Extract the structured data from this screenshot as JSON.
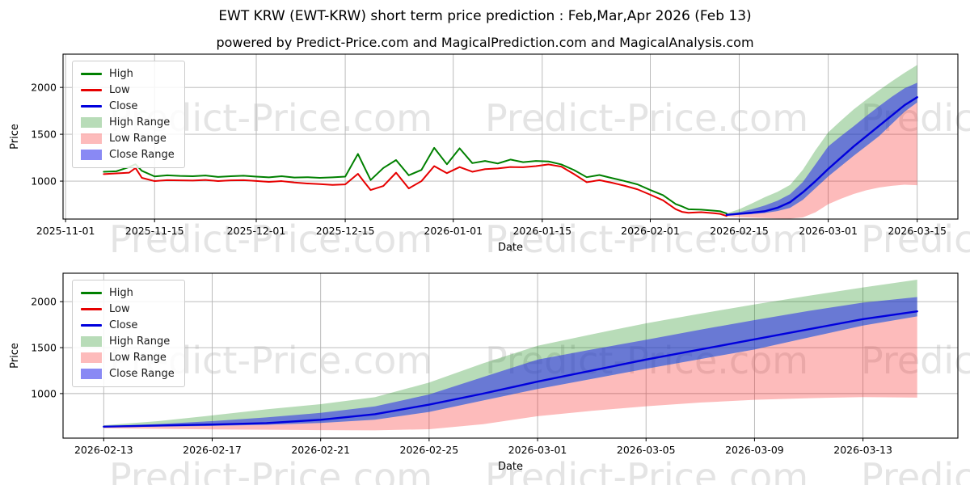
{
  "page": {
    "title": "EWT KRW (EWT-KRW) short term price prediction : Feb,Mar,Apr 2026 (Feb 13)",
    "subtitle": "powered by Predict-Price.com and MagicalPrediction.com and MagicalAnalysis.com",
    "watermark": {
      "text": "Predict-Price.com",
      "color": "#e4e4e4"
    }
  },
  "colors": {
    "high": "#008000",
    "low": "#e60000",
    "close": "#0000dd",
    "high_range": "rgba(0,128,0,0.28)",
    "low_range": "rgba(250,30,30,0.30)",
    "close_range": "rgba(40,40,235,0.55)",
    "grid": "#b4b4b4",
    "spine": "#000000",
    "tick_text": "#000000"
  },
  "legend": [
    {
      "label": "High",
      "type": "line",
      "color_key": "high"
    },
    {
      "label": "Low",
      "type": "line",
      "color_key": "low"
    },
    {
      "label": "Close",
      "type": "line",
      "color_key": "close"
    },
    {
      "label": "High Range",
      "type": "patch",
      "color_key": "high_range"
    },
    {
      "label": "Low Range",
      "type": "patch",
      "color_key": "low_range"
    },
    {
      "label": "Close Range",
      "type": "patch",
      "color_key": "close_range"
    }
  ],
  "chart_data": {
    "type": "line",
    "series": {
      "historical": {
        "dates": [
          "2025-11-07",
          "2025-11-09",
          "2025-11-11",
          "2025-11-12",
          "2025-11-13",
          "2025-11-15",
          "2025-11-17",
          "2025-11-19",
          "2025-11-21",
          "2025-11-23",
          "2025-11-25",
          "2025-11-27",
          "2025-11-29",
          "2025-12-01",
          "2025-12-03",
          "2025-12-05",
          "2025-12-07",
          "2025-12-09",
          "2025-12-11",
          "2025-12-13",
          "2025-12-15",
          "2025-12-17",
          "2025-12-18",
          "2025-12-19",
          "2025-12-21",
          "2025-12-23",
          "2025-12-25",
          "2025-12-27",
          "2025-12-29",
          "2025-12-31",
          "2026-01-02",
          "2026-01-04",
          "2026-01-06",
          "2026-01-08",
          "2026-01-10",
          "2026-01-12",
          "2026-01-14",
          "2026-01-16",
          "2026-01-18",
          "2026-01-20",
          "2026-01-22",
          "2026-01-24",
          "2026-01-26",
          "2026-01-28",
          "2026-01-30",
          "2026-02-01",
          "2026-02-03",
          "2026-02-05",
          "2026-02-06",
          "2026-02-07",
          "2026-02-09",
          "2026-02-11",
          "2026-02-12",
          "2026-02-13"
        ],
        "high": [
          1100,
          1105,
          1150,
          1180,
          1110,
          1050,
          1062,
          1055,
          1052,
          1060,
          1045,
          1052,
          1058,
          1048,
          1040,
          1052,
          1038,
          1042,
          1035,
          1040,
          1048,
          1290,
          1150,
          1012,
          1140,
          1225,
          1062,
          1120,
          1355,
          1180,
          1350,
          1192,
          1215,
          1188,
          1230,
          1202,
          1215,
          1210,
          1178,
          1118,
          1042,
          1065,
          1032,
          1000,
          965,
          905,
          850,
          755,
          730,
          700,
          695,
          685,
          678,
          655
        ],
        "low": [
          1075,
          1082,
          1090,
          1140,
          1035,
          1000,
          1010,
          1008,
          1006,
          1012,
          1000,
          1008,
          1010,
          1002,
          992,
          1000,
          985,
          975,
          968,
          960,
          965,
          1078,
          990,
          905,
          948,
          1090,
          922,
          1000,
          1160,
          1085,
          1150,
          1100,
          1128,
          1135,
          1150,
          1148,
          1160,
          1178,
          1155,
          1075,
          988,
          1010,
          982,
          950,
          912,
          855,
          795,
          700,
          672,
          662,
          668,
          658,
          650,
          628
        ]
      },
      "prediction": {
        "dates": [
          "2026-02-13",
          "2026-02-15",
          "2026-02-17",
          "2026-02-19",
          "2026-02-21",
          "2026-02-23",
          "2026-02-25",
          "2026-02-27",
          "2026-03-01",
          "2026-03-03",
          "2026-03-05",
          "2026-03-07",
          "2026-03-09",
          "2026-03-11",
          "2026-03-13",
          "2026-03-15"
        ],
        "close": [
          640,
          652,
          663,
          678,
          715,
          775,
          880,
          1000,
          1130,
          1250,
          1370,
          1480,
          1590,
          1700,
          1810,
          1895
        ],
        "high_range_upper": [
          655,
          700,
          762,
          828,
          885,
          960,
          1120,
          1330,
          1520,
          1645,
          1765,
          1870,
          1970,
          2065,
          2155,
          2240
        ],
        "close_range_upper": [
          645,
          668,
          700,
          740,
          790,
          860,
          990,
          1180,
          1370,
          1480,
          1585,
          1695,
          1800,
          1900,
          1990,
          2050
        ],
        "close_range_lower": [
          632,
          640,
          648,
          660,
          680,
          715,
          800,
          925,
          1050,
          1160,
          1270,
          1375,
          1480,
          1610,
          1740,
          1840
        ],
        "low_range_lower": [
          622,
          616,
          610,
          606,
          602,
          600,
          612,
          667,
          754,
          812,
          862,
          902,
          932,
          950,
          962,
          956
        ]
      }
    },
    "charts": [
      {
        "name": "full-history-chart",
        "ylabel": "Price",
        "xlabel": "Date",
        "yticks": [
          1000,
          1500,
          2000
        ],
        "ylim": [
          595,
          2355
        ],
        "x_start": "2025-11-07",
        "x_end": "2026-03-15",
        "xticks": [
          "2025-11-01",
          "2025-11-15",
          "2025-12-01",
          "2025-12-15",
          "2026-01-01",
          "2026-01-15",
          "2026-02-01",
          "2026-02-15",
          "2026-03-01",
          "2026-03-15"
        ],
        "series_keys": [
          "historical",
          "prediction"
        ],
        "legend_position": "upper-left",
        "grid": true
      },
      {
        "name": "prediction-zoom-chart",
        "ylabel": "Price",
        "xlabel": "Date",
        "yticks": [
          1000,
          1500,
          2000
        ],
        "ylim": [
          515,
          2310
        ],
        "x_start": "2026-02-13",
        "x_end": "2026-03-15",
        "xticks": [
          "2026-02-13",
          "2026-02-17",
          "2026-02-21",
          "2026-02-25",
          "2026-03-01",
          "2026-03-05",
          "2026-03-09",
          "2026-03-13"
        ],
        "series_keys": [
          "prediction"
        ],
        "legend_position": "upper-left",
        "grid": true
      }
    ]
  }
}
